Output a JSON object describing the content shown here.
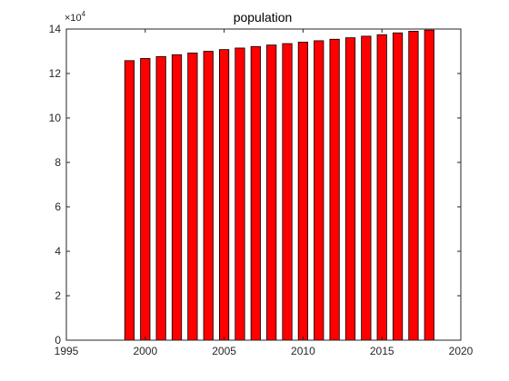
{
  "chart_data": {
    "type": "bar",
    "title": "population",
    "xlabel": "",
    "ylabel": "",
    "y_exponent_base": "×10",
    "y_exponent_power": "4",
    "categories": [
      1999,
      2000,
      2001,
      2002,
      2003,
      2004,
      2005,
      2006,
      2007,
      2008,
      2009,
      2010,
      2011,
      2012,
      2013,
      2014,
      2015,
      2016,
      2017,
      2018
    ],
    "values": [
      125786,
      126743,
      127627,
      128453,
      129227,
      129988,
      130756,
      131448,
      132129,
      132802,
      133450,
      134091,
      134735,
      135404,
      136072,
      136782,
      137462,
      138271,
      139008,
      139538
    ],
    "xlim": [
      1995,
      2020
    ],
    "ylim": [
      0,
      140000
    ],
    "xticks": [
      "1995",
      "2000",
      "2005",
      "2010",
      "2015",
      "2020"
    ],
    "yticks": [
      "0",
      "2",
      "4",
      "6",
      "8",
      "10",
      "12",
      "14"
    ],
    "bar_color": "#ff0000",
    "edge_color": "#000000",
    "grid": false,
    "legend": false
  }
}
